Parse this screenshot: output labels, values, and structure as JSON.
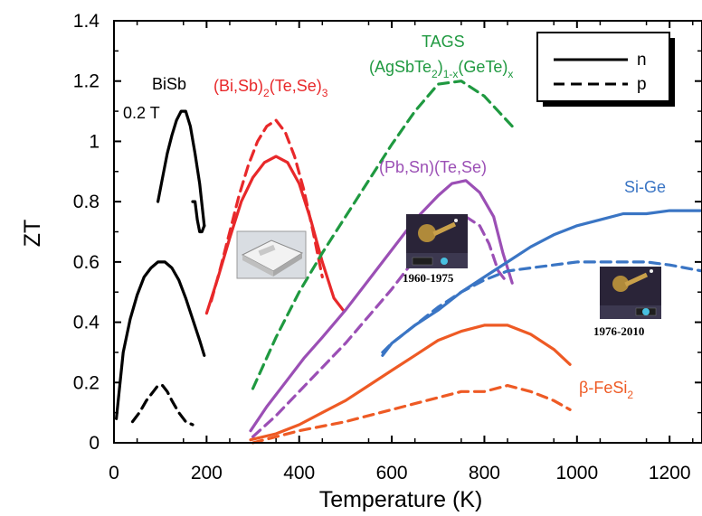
{
  "chart_data": {
    "type": "line",
    "title": "",
    "xlabel": "Temperature (K)",
    "ylabel": "ZT",
    "xlim": [
      0,
      1270
    ],
    "ylim": [
      0,
      1.4
    ],
    "x_ticks": [
      "0",
      "200",
      "400",
      "600",
      "800",
      "1000",
      "1200"
    ],
    "y_ticks": [
      "0",
      "0.2",
      "0.4",
      "0.6",
      "0.8",
      "1",
      "1.2",
      "1.4"
    ],
    "legend": {
      "position": "top-right",
      "entries": [
        {
          "label": "n",
          "style": "solid"
        },
        {
          "label": "p",
          "style": "dashed"
        }
      ]
    },
    "annotations": {
      "bisb": "BiSb",
      "bisb_field": "0.2 T",
      "bite_1": "(Bi,Sb)",
      "bite_2": "(Te,Se)",
      "bite_sub_2": "2",
      "bite_sub_3": "3",
      "tags_title": "TAGS",
      "tags_1": "(AgSbTe",
      "tags_2": ")",
      "tags_3": "(GeTe)",
      "tags_sub_2": "2",
      "tags_sub_1x": "1-x",
      "tags_sub_x": "x",
      "pbsn": "(Pb,Sn)(Te,Se)",
      "sige": "Si-Ge",
      "fesi_1": "β-FeSi",
      "fesi_sub": "2",
      "caption_1960": "1960-1975",
      "caption_1976": "1976-2010"
    },
    "series": [
      {
        "color": "#000000",
        "style": "solid",
        "x": [
          170,
          175,
          180,
          185,
          190,
          195
        ],
        "y": [
          0.8,
          0.8,
          0.74,
          0.7,
          0.7,
          0.72
        ]
      },
      {
        "color": "#000000",
        "style": "solid",
        "x": [
          95,
          105,
          115,
          125,
          135,
          145,
          155,
          165,
          175,
          185,
          195
        ],
        "y": [
          0.8,
          0.88,
          0.96,
          1.02,
          1.07,
          1.1,
          1.1,
          1.05,
          0.96,
          0.86,
          0.72
        ]
      },
      {
        "color": "#000000",
        "style": "solid",
        "x": [
          5,
          20,
          35,
          50,
          65,
          80,
          95,
          110,
          125,
          140,
          155,
          170,
          185,
          195
        ],
        "y": [
          0.08,
          0.3,
          0.41,
          0.49,
          0.55,
          0.58,
          0.6,
          0.6,
          0.58,
          0.54,
          0.48,
          0.41,
          0.34,
          0.29
        ]
      },
      {
        "color": "#000000",
        "style": "dashed",
        "x": [
          40,
          55,
          70,
          85,
          95,
          105,
          115,
          125,
          140,
          155,
          170
        ],
        "y": [
          0.07,
          0.1,
          0.14,
          0.17,
          0.19,
          0.19,
          0.17,
          0.14,
          0.1,
          0.07,
          0.06
        ]
      },
      {
        "color": "#e8282a",
        "style": "solid",
        "x": [
          200,
          225,
          250,
          275,
          300,
          325,
          350,
          375,
          400,
          425,
          450,
          475,
          495
        ],
        "y": [
          0.43,
          0.55,
          0.68,
          0.8,
          0.88,
          0.93,
          0.95,
          0.93,
          0.86,
          0.74,
          0.6,
          0.48,
          0.44
        ]
      },
      {
        "color": "#e8282a",
        "style": "dashed",
        "x": [
          210,
          230,
          250,
          270,
          290,
          310,
          330,
          350,
          370,
          390,
          410,
          430,
          450
        ],
        "y": [
          0.47,
          0.58,
          0.7,
          0.82,
          0.92,
          1.0,
          1.05,
          1.07,
          1.03,
          0.95,
          0.84,
          0.7,
          0.55
        ]
      },
      {
        "color": "#1f9940",
        "style": "dashed",
        "x": [
          300,
          350,
          400,
          450,
          500,
          550,
          600,
          650,
          700,
          750,
          800,
          830,
          860
        ],
        "y": [
          0.18,
          0.35,
          0.5,
          0.63,
          0.75,
          0.87,
          0.99,
          1.1,
          1.19,
          1.2,
          1.15,
          1.1,
          1.05
        ]
      },
      {
        "color": "#9b4fb5",
        "style": "solid",
        "x": [
          295,
          330,
          370,
          410,
          450,
          500,
          550,
          600,
          650,
          700,
          730,
          760,
          790,
          820,
          840,
          860
        ],
        "y": [
          0.04,
          0.12,
          0.2,
          0.28,
          0.35,
          0.44,
          0.54,
          0.64,
          0.74,
          0.82,
          0.86,
          0.87,
          0.83,
          0.75,
          0.63,
          0.53
        ]
      },
      {
        "color": "#9b4fb5",
        "style": "dashed",
        "x": [
          300,
          350,
          400,
          450,
          500,
          550,
          600,
          650,
          700,
          730,
          760,
          790,
          810,
          830,
          850
        ],
        "y": [
          0.02,
          0.09,
          0.17,
          0.25,
          0.33,
          0.42,
          0.51,
          0.61,
          0.7,
          0.74,
          0.75,
          0.72,
          0.66,
          0.57,
          0.53
        ]
      },
      {
        "color": "#3a75c4",
        "style": "solid",
        "x": [
          580,
          600,
          650,
          700,
          750,
          800,
          850,
          900,
          950,
          1000,
          1050,
          1100,
          1150,
          1200,
          1270
        ],
        "y": [
          0.29,
          0.33,
          0.39,
          0.44,
          0.5,
          0.55,
          0.6,
          0.65,
          0.69,
          0.72,
          0.74,
          0.76,
          0.76,
          0.77,
          0.77
        ]
      },
      {
        "color": "#3a75c4",
        "style": "dashed",
        "x": [
          580,
          600,
          650,
          700,
          750,
          800,
          850,
          900,
          950,
          1000,
          1050,
          1100,
          1150,
          1200,
          1270
        ],
        "y": [
          0.3,
          0.33,
          0.39,
          0.45,
          0.5,
          0.54,
          0.57,
          0.58,
          0.59,
          0.6,
          0.6,
          0.6,
          0.6,
          0.59,
          0.57
        ]
      },
      {
        "color": "#ee5a24",
        "style": "solid",
        "x": [
          295,
          350,
          400,
          450,
          500,
          550,
          600,
          650,
          700,
          750,
          800,
          850,
          900,
          950,
          985
        ],
        "y": [
          0.01,
          0.03,
          0.06,
          0.1,
          0.14,
          0.19,
          0.24,
          0.29,
          0.34,
          0.37,
          0.39,
          0.39,
          0.36,
          0.31,
          0.26
        ]
      },
      {
        "color": "#ee5a24",
        "style": "dashed",
        "x": [
          300,
          400,
          500,
          600,
          650,
          700,
          750,
          800,
          850,
          900,
          950,
          985
        ],
        "y": [
          0.0,
          0.04,
          0.07,
          0.11,
          0.13,
          0.15,
          0.17,
          0.17,
          0.19,
          0.17,
          0.14,
          0.11
        ]
      }
    ]
  }
}
